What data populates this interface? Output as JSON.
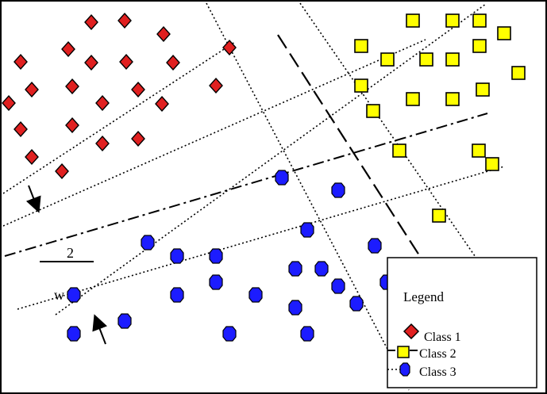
{
  "labels": {
    "two": "2",
    "w": "w"
  },
  "legend": {
    "title": "Legend",
    "items": [
      {
        "label": "Class 1",
        "marker": "diamond",
        "color": "#e02020"
      },
      {
        "label": "Class 2",
        "marker": "square",
        "color": "#ffff00"
      },
      {
        "label": "Class 3",
        "marker": "hexagon",
        "color": "#1c1cff"
      }
    ]
  },
  "colors": {
    "class1": "#e02020",
    "class2": "#ffff00",
    "class3": "#1c1cff",
    "stroke": "#000000",
    "background": "#ffffff"
  },
  "icons": [
    "arrow-down-icon",
    "arrow-up-icon"
  ]
}
